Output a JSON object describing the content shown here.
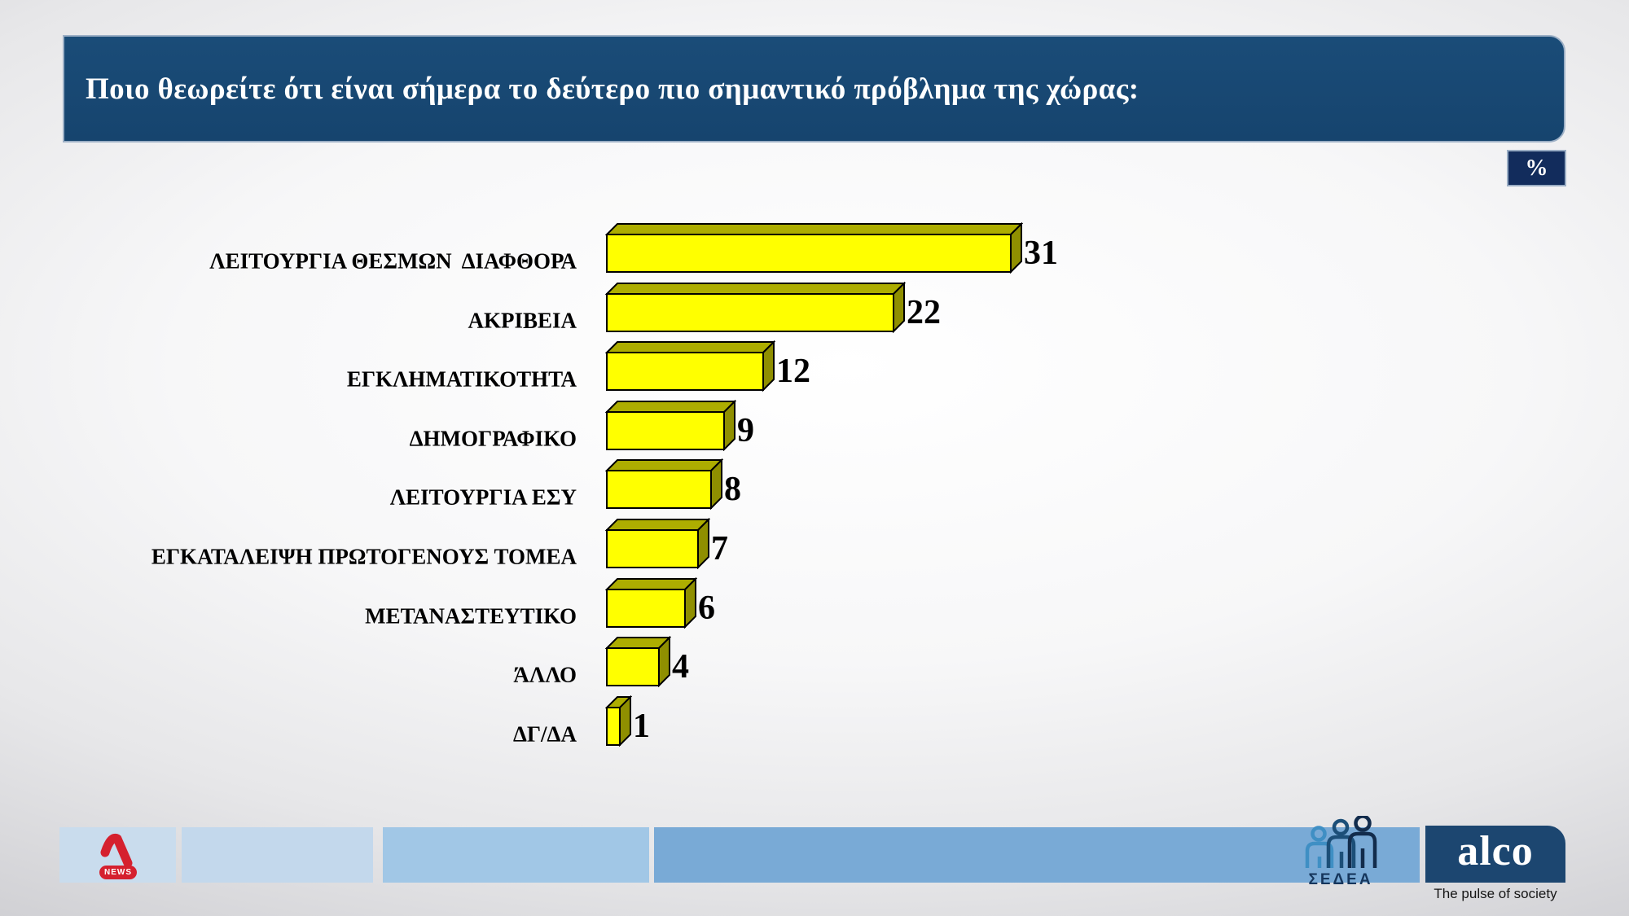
{
  "header": {
    "title": "Ποιο θεωρείτε ότι είναι σήμερα το δεύτερο πιο σημαντικό πρόβλημα της χώρας:"
  },
  "unit_badge": {
    "label": "%"
  },
  "chart_data": {
    "type": "bar",
    "orientation": "horizontal",
    "style": "3d-block-bars",
    "title": "",
    "categories": [
      "ΛΕΙΤΟΥΡΓΙΑ ΘΕΣΜΩΝ  ΔΙΑΦΘΟΡΑ",
      "ΑΚΡΙΒΕΙΑ",
      "ΕΓΚΛΗΜΑΤΙΚΟΤΗΤΑ",
      "ΔΗΜΟΓΡΑΦΙΚΟ",
      "ΛΕΙΤΟΥΡΓΙΑ ΕΣΥ",
      "ΕΓΚΑΤΑΛΕΙΨΗ ΠΡΩΤΟΓΕΝΟΥΣ ΤΟΜΕΑ",
      "ΜΕΤΑΝΑΣΤΕΥΤΙΚΟ",
      "ΆΛΛΟ",
      "ΔΓ/ΔΑ"
    ],
    "values": [
      31,
      22,
      12,
      9,
      8,
      7,
      6,
      4,
      1
    ],
    "unit": "%",
    "xlim": [
      0,
      33
    ],
    "grid": false,
    "legend": "none",
    "bar_front_color": "#FFFF00",
    "bar_top_color": "#ADAD00",
    "bar_side_color": "#8F8F00",
    "bar_outline_color": "#000000",
    "label_color": "#000000"
  },
  "footer": {
    "alpha_news": {
      "news_label": "NEWS",
      "brand_color": "#D5202E"
    },
    "sedea": {
      "label": "ΣΕΔΕΑ"
    },
    "alco": {
      "wordmark": "alco",
      "tagline": "The pulse of society"
    }
  },
  "colors": {
    "header_bg": "#17476F",
    "badge_bg": "#122C5C",
    "footer_tiles": [
      "#C9DCED",
      "#C3D8EC",
      "#A1C7E6",
      "#79AAD6"
    ],
    "alco_bg": "#1C4670"
  }
}
